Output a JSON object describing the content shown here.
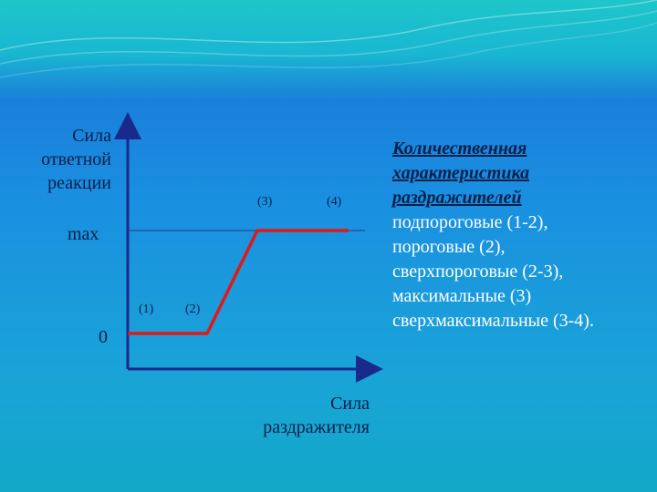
{
  "y_axis_label": [
    "Сила",
    "ответной",
    "реакции"
  ],
  "x_axis_label": [
    "Сила",
    "раздражителя"
  ],
  "y_ticks": {
    "max": "max",
    "zero": "0"
  },
  "points": [
    "(1)",
    "(2)",
    "(3)",
    "(4)"
  ],
  "colors": {
    "axis": "#1a2a8c",
    "curve": "#e01818",
    "max_line": "#2a3a90"
  },
  "right_panel": {
    "heading": [
      "Количественная",
      "характеристика",
      "раздражителей"
    ],
    "items": [
      "подпороговые (1-2),",
      "пороговые (2),",
      "сверхпороговые (2-3),",
      "максимальные (3)",
      "сверхмаксимальные (3-4)."
    ]
  }
}
